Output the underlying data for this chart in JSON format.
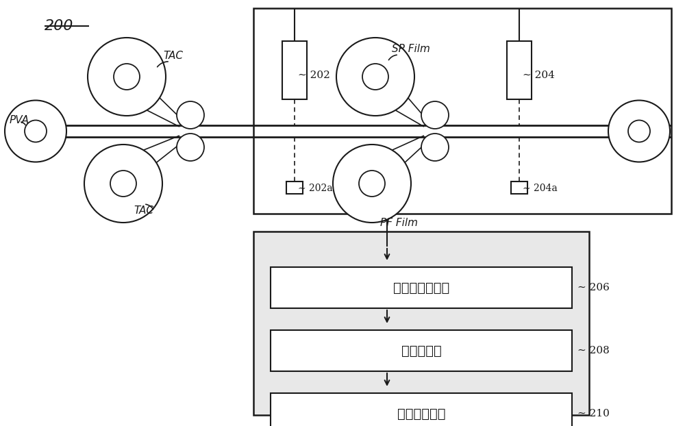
{
  "bg_color": "#ffffff",
  "line_color": "#1a1a1a",
  "fig_w": 10.0,
  "fig_h": 6.22,
  "dpi": 100,
  "box1_text": "接缝缺陷排除部",
  "box2_text": "数据合并部",
  "box3_text": "成品率预测部",
  "label_200": "200",
  "label_PVA": "PVA",
  "label_TAC_top": "TAC",
  "label_TAC_bot": "TAC",
  "label_SP_Film": "SP Film",
  "label_PF_Film": "PF Film",
  "label_202": "202",
  "label_202a": "202a",
  "label_204": "204",
  "label_204a": "204a",
  "label_206": "206",
  "label_208": "208",
  "label_210": "210"
}
